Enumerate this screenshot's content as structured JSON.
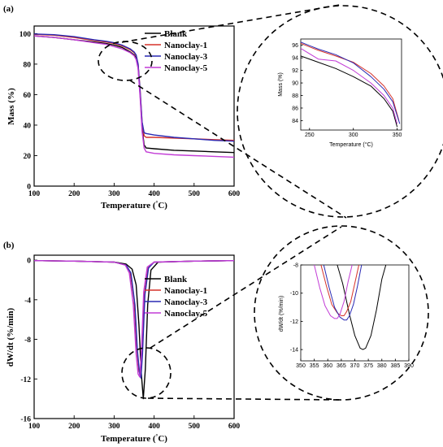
{
  "chart_data": [
    {
      "id": "panel-a",
      "panel_label": "(a)",
      "type": "line",
      "xlabel_main": "Temperature (",
      "xlabel_unit": "°C)",
      "ylabel": "Mass (%)",
      "xlim": [
        100,
        600
      ],
      "ylim": [
        0,
        105
      ],
      "xticks": [
        100,
        200,
        300,
        400,
        500,
        600
      ],
      "yticks": [
        0,
        20,
        40,
        60,
        80,
        100
      ],
      "legend": "top-right",
      "series": [
        {
          "name": "Blank",
          "color": "#000000",
          "x": [
            100,
            150,
            200,
            250,
            280,
            300,
            320,
            340,
            350,
            355,
            360,
            365,
            370,
            375,
            380,
            400,
            450,
            500,
            550,
            600
          ],
          "y": [
            98.5,
            97.5,
            96,
            94.5,
            93.5,
            92.5,
            91,
            88,
            86,
            84,
            78,
            60,
            38,
            27,
            25,
            24.5,
            23.5,
            23,
            22.5,
            22
          ]
        },
        {
          "name": "Nanoclay-1",
          "color": "#d6322a",
          "x": [
            100,
            150,
            200,
            250,
            280,
            300,
            320,
            340,
            350,
            355,
            360,
            365,
            370,
            375,
            380,
            400,
            450,
            500,
            550,
            600
          ],
          "y": [
            99.5,
            99,
            97.5,
            95.5,
            94.5,
            93.5,
            92,
            89.5,
            87.5,
            85.5,
            80,
            63,
            42,
            33,
            32,
            32,
            31.5,
            31,
            30.5,
            30
          ]
        },
        {
          "name": "Nanoclay-3",
          "color": "#2a2ab4",
          "x": [
            100,
            150,
            200,
            250,
            280,
            300,
            320,
            340,
            350,
            355,
            360,
            365,
            370,
            375,
            380,
            400,
            450,
            500,
            550,
            600
          ],
          "y": [
            99.8,
            99.3,
            98,
            96,
            95,
            94,
            92.5,
            90,
            88,
            86,
            80,
            62,
            42,
            35,
            34.5,
            33.5,
            32,
            31,
            30,
            29.5
          ]
        },
        {
          "name": "Nanoclay-5",
          "color": "#c23cd6",
          "x": [
            100,
            150,
            200,
            250,
            280,
            300,
            320,
            340,
            350,
            355,
            360,
            365,
            370,
            375,
            380,
            400,
            450,
            500,
            550,
            600
          ],
          "y": [
            98.5,
            97.5,
            96,
            94,
            93,
            91.5,
            90,
            87.5,
            85.5,
            83,
            77,
            58,
            36,
            25,
            22.5,
            21.5,
            20.5,
            20,
            19.5,
            19
          ]
        }
      ]
    },
    {
      "id": "panel-a-inset",
      "type": "line",
      "xlabel_main": "Temperature (",
      "xlabel_unit": "°C)",
      "ylabel": "Mass (%)",
      "xlim": [
        240,
        355
      ],
      "ylim": [
        82.5,
        97
      ],
      "xticks": [
        250,
        300,
        350
      ],
      "yticks": [
        84,
        86,
        88,
        90,
        92,
        94,
        96
      ],
      "series": [
        {
          "name": "Blank",
          "color": "#000000",
          "x": [
            240,
            260,
            280,
            300,
            320,
            335,
            345,
            350
          ],
          "y": [
            94.3,
            93.3,
            92.3,
            91,
            89.5,
            87.5,
            85.5,
            83
          ]
        },
        {
          "name": "Nanoclay-1",
          "color": "#d6322a",
          "x": [
            240,
            260,
            280,
            300,
            320,
            335,
            345,
            352
          ],
          "y": [
            96.3,
            95.2,
            94.3,
            93.3,
            91.5,
            89.5,
            87.5,
            84
          ]
        },
        {
          "name": "Nanoclay-3",
          "color": "#2a2ab4",
          "x": [
            240,
            260,
            280,
            300,
            320,
            335,
            345,
            353
          ],
          "y": [
            96.5,
            95.4,
            94.5,
            93.2,
            91,
            89,
            87,
            83.5
          ]
        },
        {
          "name": "Nanoclay-5",
          "color": "#c23cd6",
          "x": [
            240,
            260,
            280,
            300,
            320,
            335,
            345,
            350
          ],
          "y": [
            95.5,
            93.8,
            93.5,
            92,
            90,
            88,
            86,
            83.5
          ]
        }
      ]
    },
    {
      "id": "panel-b",
      "panel_label": "(b)",
      "type": "line",
      "xlabel_main": "Temperature (",
      "xlabel_unit": "°C)",
      "ylabel": "dW/dt (%/min)",
      "xlim": [
        100,
        600
      ],
      "ylim": [
        -16,
        0.5
      ],
      "xticks": [
        100,
        200,
        300,
        400,
        500,
        600
      ],
      "yticks": [
        0,
        -4,
        -8,
        -12,
        -16
      ],
      "ytick_labels": [
        "0",
        "-4",
        "-8",
        "-12",
        "-16"
      ],
      "legend": "center-right",
      "series": [
        {
          "name": "Blank",
          "color": "#000000",
          "x": [
            100,
            200,
            300,
            330,
            345,
            355,
            362,
            368,
            373,
            378,
            384,
            392,
            410,
            500,
            600
          ],
          "y": [
            -0.05,
            -0.1,
            -0.2,
            -0.4,
            -0.9,
            -2.5,
            -6.5,
            -11.5,
            -14,
            -11,
            -4.5,
            -1,
            -0.2,
            -0.1,
            -0.05
          ]
        },
        {
          "name": "Nanoclay-1",
          "color": "#d6322a",
          "x": [
            100,
            200,
            300,
            330,
            340,
            350,
            356,
            362,
            366,
            370,
            376,
            385,
            400,
            500,
            600
          ],
          "y": [
            -0.05,
            -0.1,
            -0.2,
            -0.5,
            -1.2,
            -4,
            -8.5,
            -11.2,
            -11.6,
            -9.5,
            -3.5,
            -0.8,
            -0.2,
            -0.1,
            -0.05
          ]
        },
        {
          "name": "Nanoclay-3",
          "color": "#2a2ab4",
          "x": [
            100,
            200,
            300,
            330,
            342,
            352,
            358,
            364,
            367,
            371,
            377,
            386,
            400,
            500,
            600
          ],
          "y": [
            -0.05,
            -0.1,
            -0.2,
            -0.5,
            -1.3,
            -4.5,
            -9,
            -11.6,
            -11.9,
            -9.5,
            -3.5,
            -0.8,
            -0.2,
            -0.1,
            -0.05
          ]
        },
        {
          "name": "Nanoclay-5",
          "color": "#c23cd6",
          "x": [
            100,
            200,
            300,
            328,
            338,
            348,
            355,
            360,
            364,
            368,
            374,
            383,
            400,
            500,
            600
          ],
          "y": [
            -0.05,
            -0.1,
            -0.2,
            -0.5,
            -1.3,
            -4.5,
            -9.5,
            -11.5,
            -11.8,
            -9.5,
            -3.2,
            -0.7,
            -0.2,
            -0.1,
            -0.05
          ]
        }
      ]
    },
    {
      "id": "panel-b-inset",
      "type": "line",
      "xlabel": "",
      "ylabel": "dW/dt (%/min)",
      "xlim": [
        350,
        390
      ],
      "ylim": [
        -14.8,
        -8
      ],
      "xticks": [
        350,
        355,
        360,
        365,
        370,
        375,
        380,
        385,
        390
      ],
      "yticks": [
        -14,
        -12,
        -10,
        -8
      ],
      "series": [
        {
          "name": "Blank",
          "color": "#000000",
          "x": [
            363.5,
            365.5,
            368,
            370,
            372,
            373,
            374,
            376,
            378,
            380,
            381.5
          ],
          "y": [
            -8,
            -9.3,
            -11.5,
            -13,
            -13.9,
            -14,
            -13.9,
            -13,
            -11.2,
            -9,
            -8
          ]
        },
        {
          "name": "Nanoclay-1",
          "color": "#d6322a",
          "x": [
            357.5,
            359.5,
            361.5,
            363.5,
            365,
            366,
            367,
            368.5,
            370,
            371.5
          ],
          "y": [
            -8,
            -9.5,
            -10.8,
            -11.4,
            -11.6,
            -11.6,
            -11.3,
            -10.6,
            -9.3,
            -8
          ]
        },
        {
          "name": "Nanoclay-3",
          "color": "#2a2ab4",
          "x": [
            358.5,
            360.5,
            362.5,
            364.5,
            366,
            367,
            368,
            369.5,
            371,
            372.5
          ],
          "y": [
            -8,
            -9.6,
            -11,
            -11.7,
            -11.9,
            -11.9,
            -11.6,
            -10.8,
            -9.5,
            -8
          ]
        },
        {
          "name": "Nanoclay-5",
          "color": "#c23cd6",
          "x": [
            355,
            357,
            359,
            361,
            362.5,
            363.5,
            364.5,
            366,
            367.5,
            369
          ],
          "y": [
            -8,
            -9.6,
            -10.9,
            -11.6,
            -11.8,
            -11.8,
            -11.5,
            -10.6,
            -9.2,
            -8
          ]
        }
      ]
    }
  ]
}
